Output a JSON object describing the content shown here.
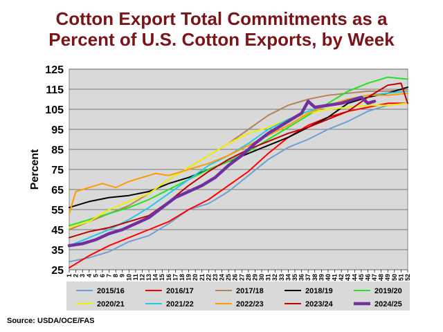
{
  "chart_data": {
    "type": "line",
    "title_line1": "Cotton Export Total Commitments as a",
    "title_line2": "Percent of U.S. Cotton Exports, by Week",
    "ylabel": "Percent",
    "xlabel": "",
    "source": "Source:  USDA/OCE/FAS",
    "ylim": [
      25,
      125
    ],
    "yticks": [
      25,
      35,
      45,
      55,
      65,
      75,
      85,
      95,
      105,
      115,
      125
    ],
    "xlim": [
      1,
      52
    ],
    "x": [
      1,
      2,
      3,
      4,
      5,
      6,
      7,
      8,
      9,
      10,
      11,
      12,
      13,
      14,
      15,
      16,
      17,
      18,
      19,
      20,
      21,
      22,
      23,
      24,
      25,
      26,
      27,
      28,
      29,
      30,
      31,
      32,
      33,
      34,
      35,
      36,
      37,
      38,
      39,
      40,
      41,
      42,
      43,
      44,
      45,
      46,
      47,
      48,
      49,
      50,
      51,
      52
    ],
    "grid": "horizontal",
    "legend_position": "bottom",
    "series": [
      {
        "name": "2015/16",
        "color": "#6f9fd1",
        "width": 2,
        "x": [
          1,
          4,
          7,
          10,
          13,
          16,
          19,
          22,
          25,
          28,
          31,
          34,
          37,
          40,
          43,
          46,
          49,
          52
        ],
        "values": [
          29,
          31,
          34,
          39,
          42,
          48,
          55,
          58,
          64,
          72,
          80,
          86,
          90,
          95,
          99,
          104,
          107,
          108
        ]
      },
      {
        "name": "2016/17",
        "color": "#ff0000",
        "width": 2,
        "x": [
          1,
          4,
          7,
          10,
          13,
          16,
          19,
          22,
          25,
          28,
          31,
          34,
          37,
          40,
          43,
          46,
          49,
          52
        ],
        "values": [
          26,
          32,
          37,
          41,
          45,
          49,
          55,
          60,
          67,
          74,
          83,
          91,
          97,
          101,
          104,
          106,
          108,
          108
        ]
      },
      {
        "name": "2017/18",
        "color": "#b5835a",
        "width": 2,
        "x": [
          1,
          4,
          7,
          10,
          13,
          16,
          19,
          22,
          25,
          28,
          31,
          34,
          37,
          40,
          43,
          46,
          49,
          52
        ],
        "values": [
          45,
          49,
          53,
          57,
          63,
          70,
          76,
          82,
          88,
          95,
          102,
          107,
          110,
          112,
          113,
          114,
          114,
          115
        ]
      },
      {
        "name": "2018/19",
        "color": "#000000",
        "width": 2,
        "x": [
          1,
          4,
          7,
          10,
          13,
          16,
          19,
          22,
          25,
          28,
          31,
          34,
          37,
          40,
          43,
          46,
          49,
          52
        ],
        "values": [
          56,
          59,
          61,
          62,
          64,
          68,
          71,
          75,
          79,
          83,
          87,
          91,
          96,
          101,
          108,
          111,
          113,
          116
        ]
      },
      {
        "name": "2019/20",
        "color": "#22e022",
        "width": 2,
        "x": [
          1,
          4,
          7,
          10,
          13,
          16,
          19,
          22,
          25,
          28,
          31,
          34,
          37,
          40,
          43,
          46,
          49,
          52
        ],
        "values": [
          47,
          50,
          53,
          56,
          60,
          65,
          70,
          75,
          79,
          84,
          90,
          96,
          102,
          108,
          114,
          118,
          121,
          120
        ]
      },
      {
        "name": "2020/21",
        "color": "#f0f000",
        "width": 2,
        "x": [
          1,
          4,
          7,
          10,
          13,
          16,
          19,
          22,
          25,
          28,
          31,
          34,
          37,
          40,
          43,
          46,
          49,
          52
        ],
        "values": [
          46,
          49,
          55,
          59,
          63,
          70,
          76,
          82,
          88,
          93,
          96,
          100,
          103,
          105,
          106,
          107,
          107,
          108
        ]
      },
      {
        "name": "2021/22",
        "color": "#21c8e8",
        "width": 2,
        "x": [
          1,
          4,
          7,
          10,
          13,
          16,
          19,
          22,
          25,
          28,
          31,
          34,
          37,
          40,
          43,
          46,
          49,
          52
        ],
        "values": [
          37,
          41,
          45,
          50,
          56,
          63,
          70,
          77,
          82,
          88,
          95,
          100,
          104,
          107,
          110,
          112,
          113,
          114
        ]
      },
      {
        "name": "2022/23",
        "color": "#ff9a00",
        "width": 2,
        "x": [
          1,
          2,
          4,
          6,
          8,
          10,
          12,
          14,
          16,
          19,
          22,
          25,
          28,
          31,
          34,
          37,
          40,
          43,
          46,
          49,
          52
        ],
        "values": [
          53,
          64,
          66,
          68,
          66,
          69,
          71,
          73,
          72,
          75,
          78,
          82,
          87,
          92,
          97,
          103,
          107,
          110,
          112,
          112,
          113
        ]
      },
      {
        "name": "2023/24",
        "color": "#c00000",
        "width": 2,
        "x": [
          1,
          4,
          7,
          10,
          13,
          16,
          19,
          22,
          25,
          28,
          31,
          34,
          37,
          40,
          43,
          46,
          49,
          51,
          52
        ],
        "values": [
          41,
          44,
          46,
          49,
          52,
          59,
          67,
          74,
          80,
          85,
          89,
          93,
          96,
          100,
          104,
          111,
          117,
          118,
          108
        ]
      },
      {
        "name": "2024/25",
        "color": "#7030a0",
        "width": 4.5,
        "x": [
          1,
          3,
          5,
          7,
          9,
          11,
          13,
          15,
          17,
          19,
          21,
          23,
          25,
          27,
          29,
          31,
          33,
          35,
          36,
          37,
          38,
          40,
          42,
          44,
          45,
          46,
          47
        ],
        "values": [
          37,
          38,
          40,
          43,
          45,
          48,
          51,
          56,
          61,
          64,
          67,
          71,
          77,
          82,
          88,
          93,
          97,
          101,
          103,
          109,
          106,
          107,
          108,
          110,
          111,
          108,
          109
        ]
      }
    ]
  }
}
